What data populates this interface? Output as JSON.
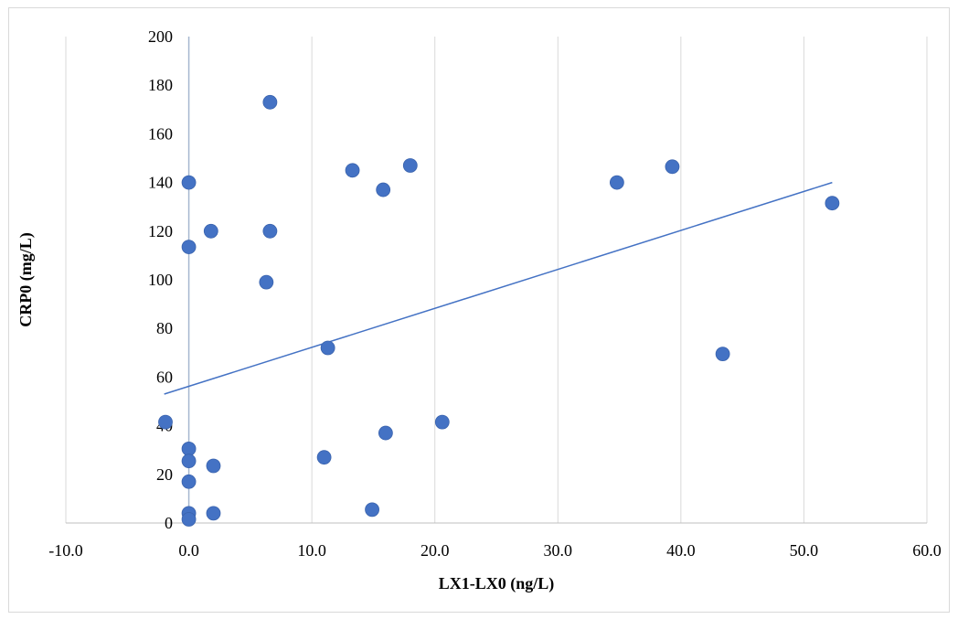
{
  "chart_data": {
    "type": "scatter",
    "title": "",
    "xlabel": "LX1-LX0 (ng/L)",
    "ylabel": "CRP0 (mg/L)",
    "xlim": [
      -10,
      60
    ],
    "ylim": [
      0,
      200
    ],
    "x_ticks": [
      "-10.0",
      "0.0",
      "10.0",
      "20.0",
      "30.0",
      "40.0",
      "50.0",
      "60.0"
    ],
    "y_ticks": [
      "0",
      "20",
      "40",
      "60",
      "80",
      "100",
      "120",
      "140",
      "160",
      "180",
      "200"
    ],
    "grid": "vertical",
    "legend": "none",
    "point_color": "#4472c4",
    "trendline_color": "#4472c4",
    "points": [
      {
        "x": 6.6,
        "y": 173.0
      },
      {
        "x": 0.0,
        "y": 140.0
      },
      {
        "x": 13.3,
        "y": 145.0
      },
      {
        "x": 18.0,
        "y": 147.0
      },
      {
        "x": 15.8,
        "y": 137.0
      },
      {
        "x": 34.8,
        "y": 140.0
      },
      {
        "x": 39.3,
        "y": 146.5
      },
      {
        "x": 52.3,
        "y": 131.5
      },
      {
        "x": 1.8,
        "y": 120.0
      },
      {
        "x": 6.6,
        "y": 120.0
      },
      {
        "x": 0.0,
        "y": 113.5
      },
      {
        "x": 6.3,
        "y": 99.0
      },
      {
        "x": 11.3,
        "y": 72.0
      },
      {
        "x": 43.4,
        "y": 69.5
      },
      {
        "x": -1.9,
        "y": 41.5
      },
      {
        "x": 20.6,
        "y": 41.5
      },
      {
        "x": 16.0,
        "y": 37.0
      },
      {
        "x": 0.0,
        "y": 30.5
      },
      {
        "x": 11.0,
        "y": 27.0
      },
      {
        "x": 0.0,
        "y": 25.5
      },
      {
        "x": 2.0,
        "y": 23.5
      },
      {
        "x": 0.0,
        "y": 17.0
      },
      {
        "x": 14.9,
        "y": 5.5
      },
      {
        "x": 0.0,
        "y": 4.0
      },
      {
        "x": 2.0,
        "y": 4.0
      },
      {
        "x": 0.0,
        "y": 1.5
      }
    ],
    "trendline": {
      "x": [
        -2.0,
        52.3
      ],
      "y": [
        53.0,
        140.0
      ]
    }
  }
}
